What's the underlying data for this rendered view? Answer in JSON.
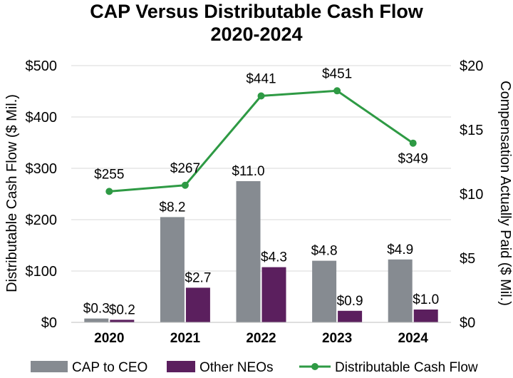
{
  "chart_data": {
    "type": "bar",
    "title": "CAP Versus Distributable Cash Flow",
    "subtitle": "2020-2024",
    "categories": [
      "2020",
      "2021",
      "2022",
      "2023",
      "2024"
    ],
    "ylabel_left": "Distributable Cash Flow ($ Mil.)",
    "ylabel_right": "Compensation Actually Paid ($ Mil.)",
    "ylim_left": [
      0,
      500
    ],
    "ylim_right": [
      0,
      20
    ],
    "yticks_left": [
      "$0",
      "$100",
      "$200",
      "$300",
      "$400",
      "$500"
    ],
    "yticks_right": [
      "$0",
      "$5",
      "$10",
      "$15",
      "$20"
    ],
    "series": [
      {
        "name": "CAP to CEO",
        "type": "bar",
        "axis": "right",
        "color": "#868b91",
        "values": [
          0.3,
          8.2,
          11.0,
          4.8,
          4.9
        ],
        "labels": [
          "$0.3",
          "$8.2",
          "$11.0",
          "$4.8",
          "$4.9"
        ]
      },
      {
        "name": "Other NEOs",
        "type": "bar",
        "axis": "right",
        "color": "#5b1f5e",
        "values": [
          0.2,
          2.7,
          4.3,
          0.9,
          1.0
        ],
        "labels": [
          "$0.2",
          "$2.7",
          "$4.3",
          "$0.9",
          "$1.0"
        ]
      },
      {
        "name": "Distributable Cash Flow",
        "type": "line",
        "axis": "left",
        "color": "#2e9a44",
        "values": [
          255,
          267,
          441,
          451,
          349
        ],
        "labels": [
          "$255",
          "$267",
          "$441",
          "$451",
          "$349"
        ]
      }
    ],
    "grid": true,
    "legend_position": "bottom"
  }
}
